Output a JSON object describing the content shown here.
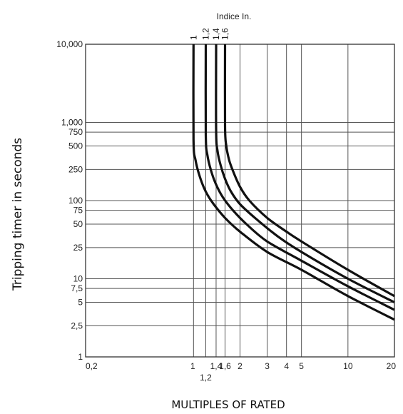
{
  "chart_data": {
    "type": "line",
    "title": "Indice In.",
    "xlabel": "MULTIPLES OF RATED",
    "ylabel": "Tripping timer in seconds",
    "x_scale": "log",
    "y_scale": "log",
    "xlim": [
      0.2,
      20
    ],
    "ylim": [
      1,
      10000
    ],
    "grid": true,
    "x_ticks": [
      {
        "value": 0.2,
        "label": "0,2"
      },
      {
        "value": 1,
        "label": "1"
      },
      {
        "value": 1.2,
        "label": "1,2"
      },
      {
        "value": 1.4,
        "label": "1,4"
      },
      {
        "value": 1.6,
        "label": "1,6"
      },
      {
        "value": 2,
        "label": "2"
      },
      {
        "value": 3,
        "label": "3"
      },
      {
        "value": 4,
        "label": "4"
      },
      {
        "value": 5,
        "label": "5"
      },
      {
        "value": 10,
        "label": "10"
      },
      {
        "value": 20,
        "label": "20"
      }
    ],
    "y_ticks": [
      {
        "value": 1,
        "label": "1"
      },
      {
        "value": 2.5,
        "label": "2,5"
      },
      {
        "value": 5,
        "label": "5"
      },
      {
        "value": 7.5,
        "label": "7,5"
      },
      {
        "value": 10,
        "label": "10"
      },
      {
        "value": 25,
        "label": "25"
      },
      {
        "value": 50,
        "label": "50"
      },
      {
        "value": 75,
        "label": "75"
      },
      {
        "value": 100,
        "label": "100"
      },
      {
        "value": 250,
        "label": "250"
      },
      {
        "value": 500,
        "label": "500"
      },
      {
        "value": 750,
        "label": "750"
      },
      {
        "value": 1000,
        "label": "1,000"
      },
      {
        "value": 10000,
        "label": "10,000"
      }
    ],
    "series": [
      {
        "name": "1",
        "x": [
          1.0,
          1.0,
          1.03,
          1.1,
          1.2,
          1.35,
          1.6,
          2,
          3,
          5,
          10,
          20
        ],
        "y": [
          10000,
          600,
          330,
          200,
          130,
          90,
          60,
          40,
          22,
          13,
          6,
          3
        ]
      },
      {
        "name": "1,2",
        "x": [
          1.2,
          1.2,
          1.23,
          1.3,
          1.4,
          1.55,
          1.8,
          2.2,
          3,
          5,
          10,
          20
        ],
        "y": [
          10000,
          700,
          380,
          240,
          160,
          110,
          75,
          50,
          30,
          17,
          8,
          4
        ]
      },
      {
        "name": "1,4",
        "x": [
          1.4,
          1.4,
          1.43,
          1.5,
          1.6,
          1.75,
          2,
          2.5,
          3.5,
          5,
          10,
          20
        ],
        "y": [
          10000,
          800,
          430,
          280,
          190,
          130,
          90,
          60,
          35,
          22,
          10,
          5
        ]
      },
      {
        "name": "1,6",
        "x": [
          1.6,
          1.6,
          1.63,
          1.7,
          1.8,
          2,
          2.3,
          3,
          4,
          5,
          10,
          20
        ],
        "y": [
          10000,
          900,
          500,
          330,
          240,
          150,
          100,
          60,
          40,
          30,
          13,
          6
        ]
      }
    ]
  }
}
